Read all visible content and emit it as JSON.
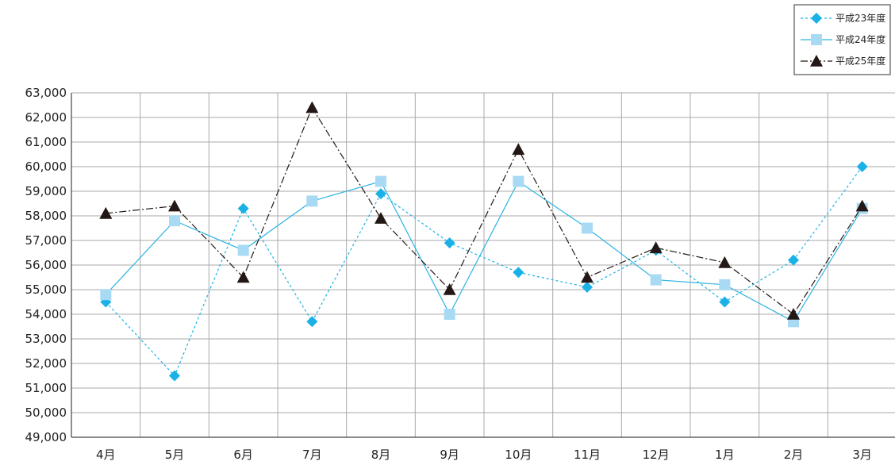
{
  "chart_data": {
    "type": "line",
    "title": "",
    "xlabel": "",
    "ylabel": "",
    "categories": [
      "4月",
      "5月",
      "6月",
      "7月",
      "8月",
      "9月",
      "10月",
      "11月",
      "12月",
      "1月",
      "2月",
      "3月"
    ],
    "ylim": [
      49000,
      63000
    ],
    "ytick_step": 1000,
    "ytick_labels": [
      "49,000",
      "50,000",
      "51,000",
      "52,000",
      "53,000",
      "54,000",
      "55,000",
      "56,000",
      "57,000",
      "58,000",
      "59,000",
      "60,000",
      "61,000",
      "62,000",
      "63,000"
    ],
    "grid": true,
    "legend_position": "top-right",
    "series": [
      {
        "name": "平成23年度",
        "values": [
          54500,
          51500,
          58300,
          53700,
          58900,
          56900,
          55700,
          55100,
          56600,
          54500,
          56200,
          60000
        ],
        "color": "#1ab1e6",
        "line_style": "dotted",
        "marker": "diamond"
      },
      {
        "name": "平成24年度",
        "values": [
          54800,
          57800,
          56600,
          58600,
          59400,
          54000,
          59400,
          57500,
          55400,
          55200,
          53700,
          58300
        ],
        "color": "#a8daf4",
        "line_color": "#2cb3e3",
        "line_style": "solid",
        "marker": "square"
      },
      {
        "name": "平成25年度",
        "values": [
          58100,
          58400,
          55500,
          62400,
          57900,
          55000,
          60700,
          55500,
          56700,
          56100,
          54000,
          58400
        ],
        "color": "#231815",
        "line_style": "dash-dot",
        "marker": "triangle"
      }
    ]
  }
}
